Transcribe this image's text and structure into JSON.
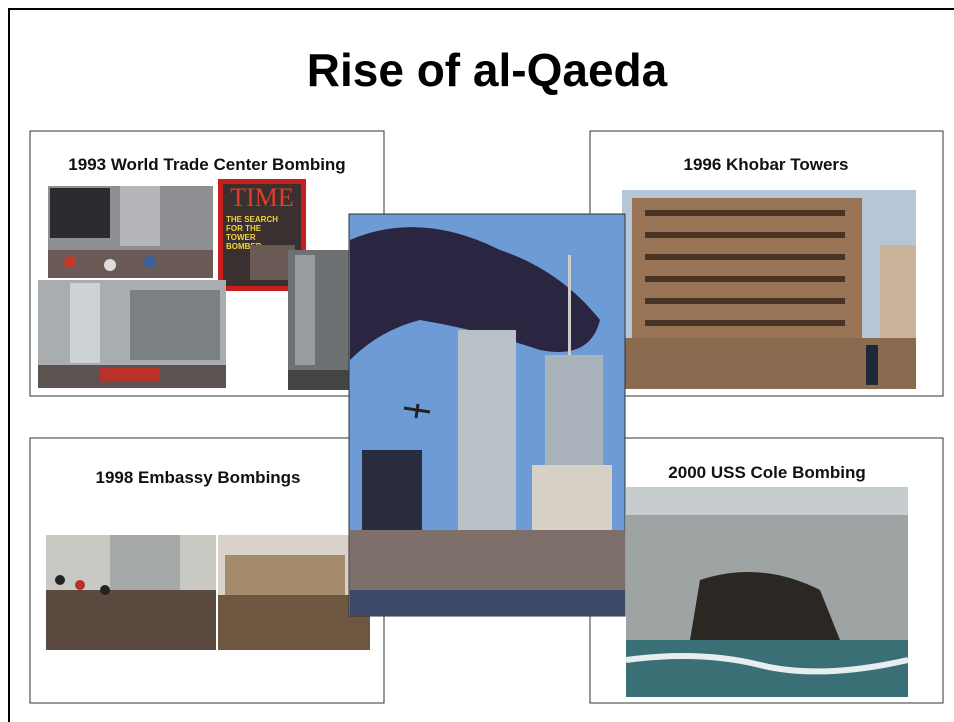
{
  "title": "Rise of al-Qaeda",
  "panels": [
    {
      "caption": "1993 World Trade Center Bombing"
    },
    {
      "caption": "1996 Khobar Towers"
    },
    {
      "caption": "1998 Embassy Bombings"
    },
    {
      "caption": "2000 USS Cole Bombing"
    }
  ],
  "magazine": {
    "name": "TIME",
    "headline": [
      "THE SEARCH",
      "FOR THE",
      "TOWER",
      "BOMBER"
    ]
  }
}
